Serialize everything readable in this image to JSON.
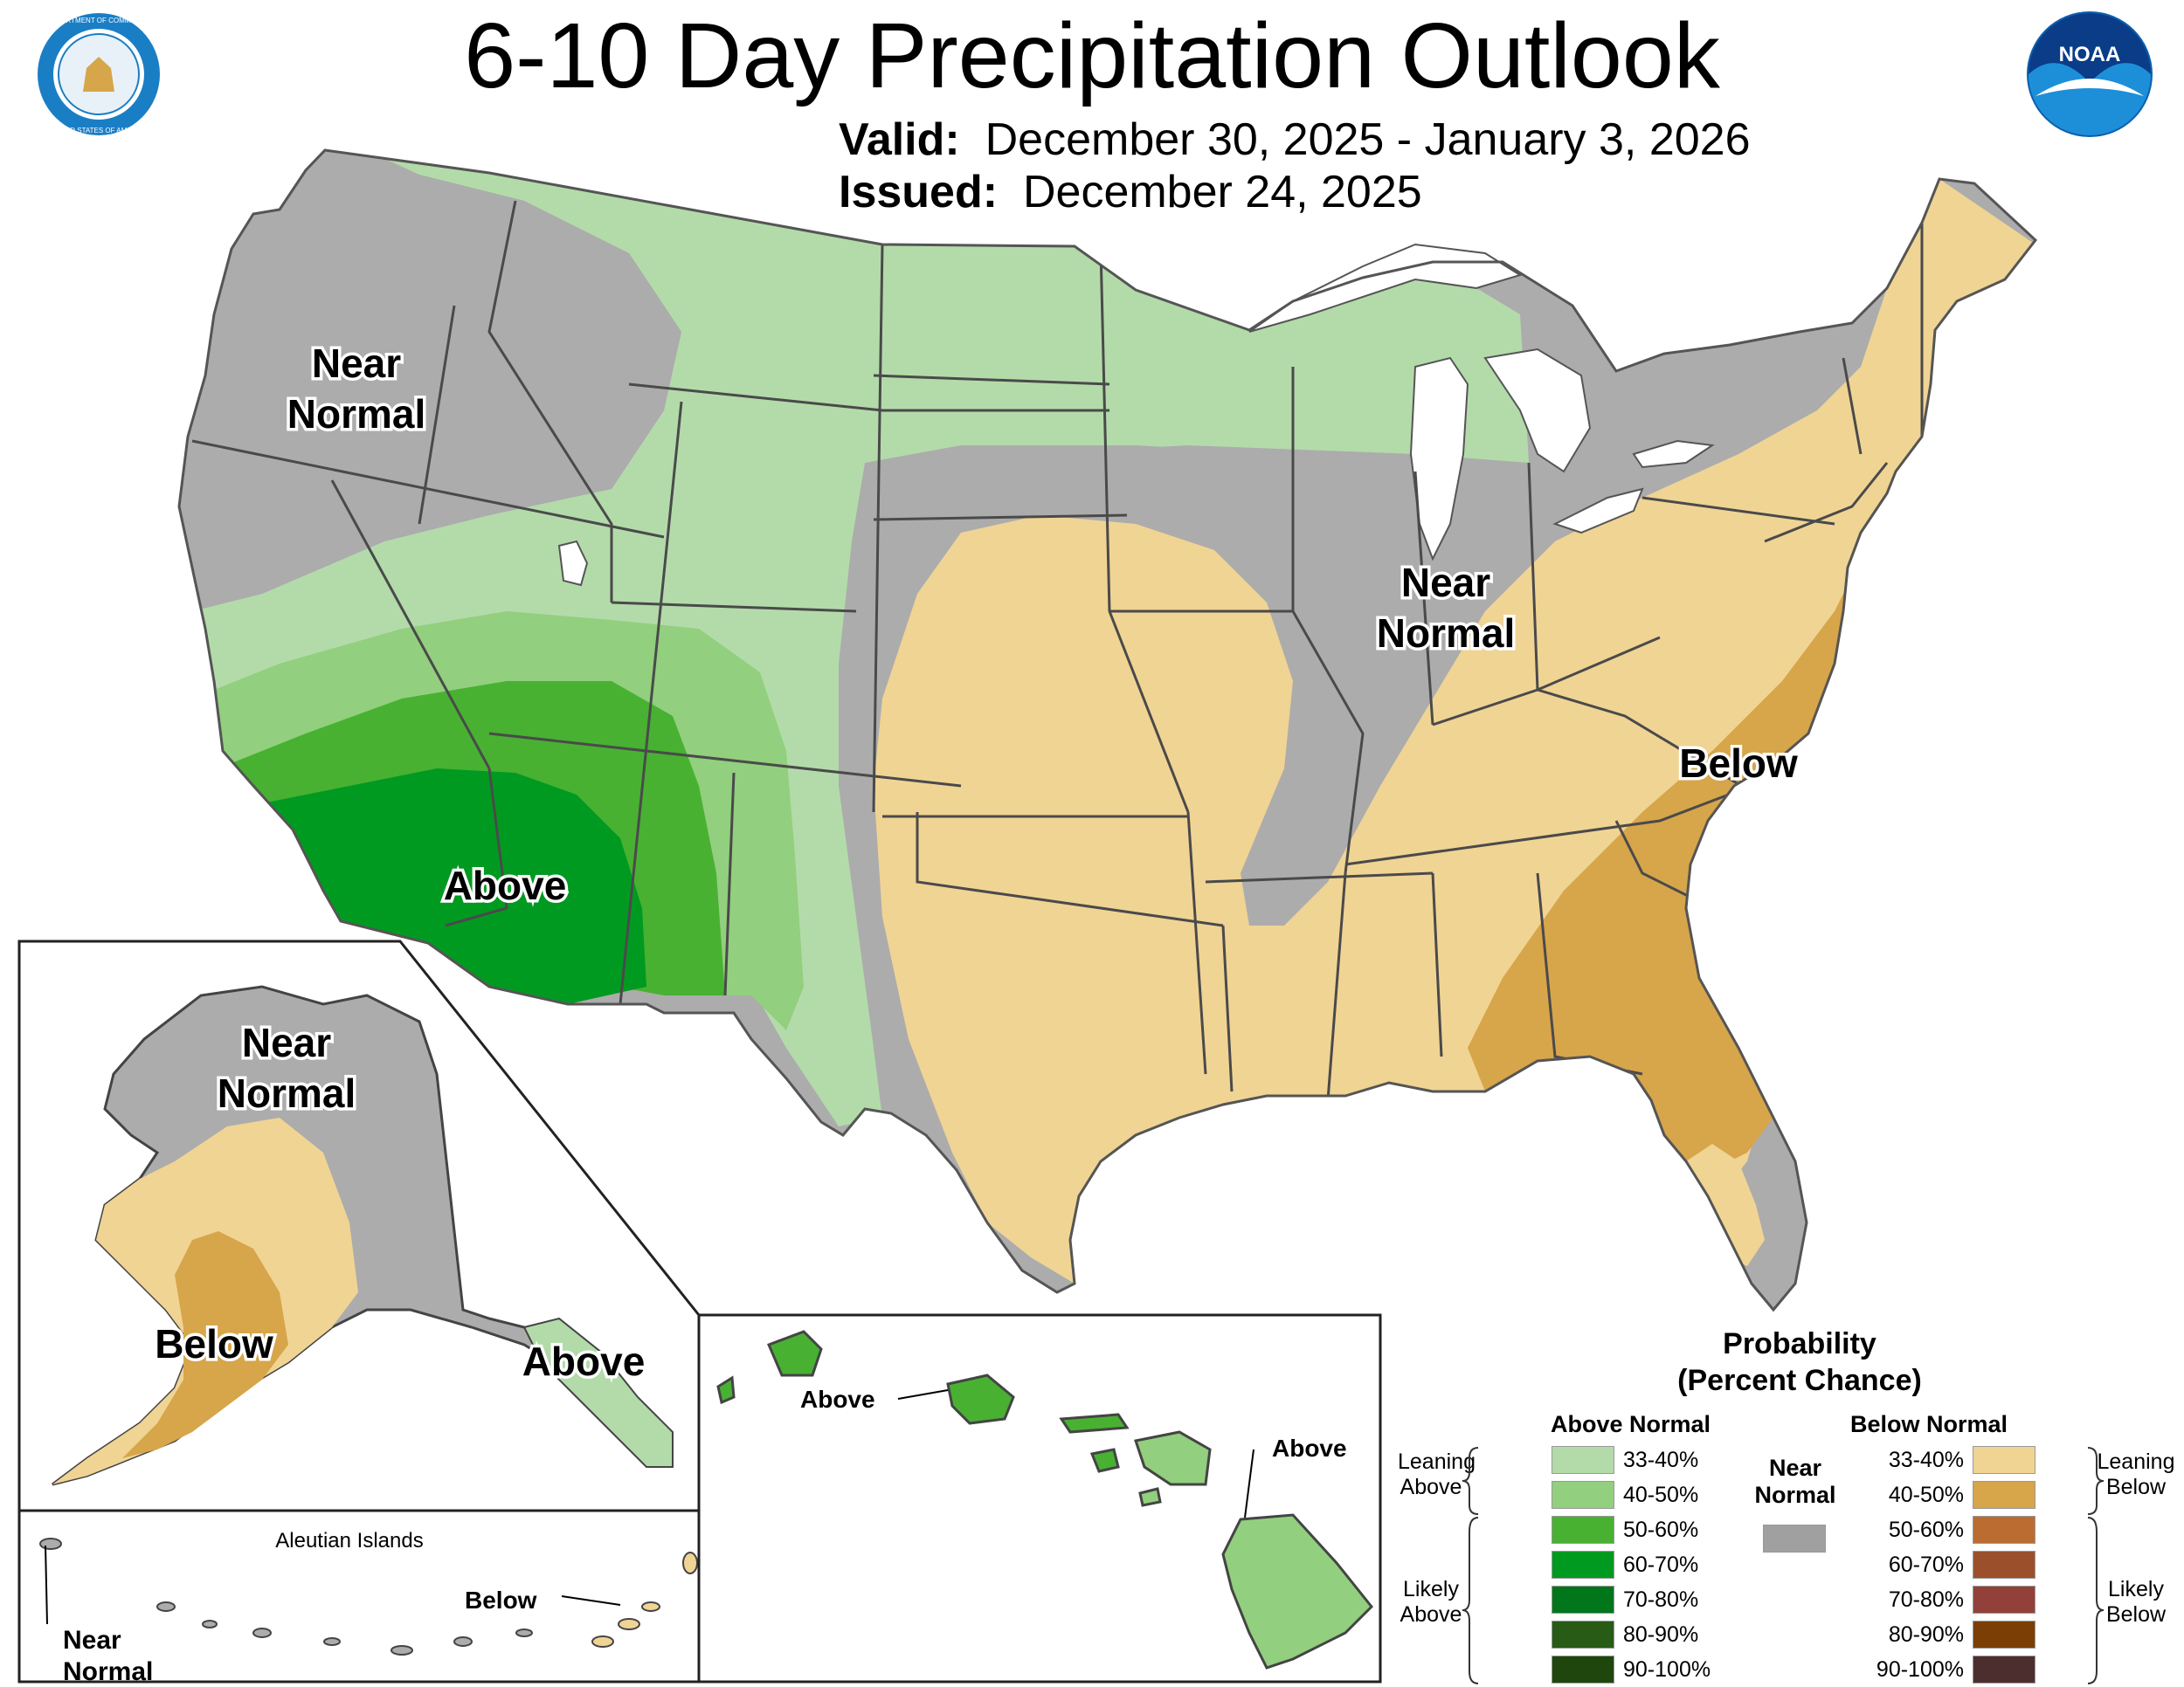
{
  "title": "6-10 Day Precipitation Outlook",
  "valid_label": "Valid:",
  "valid_dates": "December 30, 2025 - January 3, 2026",
  "issued_label": "Issued:",
  "issued_date": "December 24, 2025",
  "logos": {
    "left": "Department of Commerce seal",
    "left_ring_top": "DEPARTMENT OF COMMERCE",
    "left_ring_bottom": "UNITED STATES OF AMERICA",
    "right": "NOAA",
    "right_text": "NOAA"
  },
  "conus_labels": {
    "nw": [
      "Near",
      "Normal"
    ],
    "midwest": [
      "Near",
      "Normal"
    ],
    "southwest": "Above",
    "southeast": "Below"
  },
  "alaska_labels": {
    "north": [
      "Near",
      "Normal"
    ],
    "sw": "Below",
    "se": "Above"
  },
  "aleutian": {
    "title": "Aleutian Islands",
    "below": "Below",
    "near": [
      "Near",
      "Normal"
    ]
  },
  "hawaii_labels": {
    "left": "Above",
    "right": "Above"
  },
  "legend": {
    "title_line1": "Probability",
    "title_line2": "(Percent Chance)",
    "above_header": "Above Normal",
    "below_header": "Below Normal",
    "near_label": [
      "Near",
      "Normal"
    ],
    "near_color": "#a0a0a0",
    "leaning_above": [
      "Leaning",
      "Above"
    ],
    "likely_above": [
      "Likely",
      "Above"
    ],
    "leaning_below": [
      "Leaning",
      "Below"
    ],
    "likely_below": [
      "Likely",
      "Below"
    ],
    "above": [
      {
        "range": "33-40%",
        "color": "#b3dbaa"
      },
      {
        "range": "40-50%",
        "color": "#92cf7e"
      },
      {
        "range": "50-60%",
        "color": "#48b132"
      },
      {
        "range": "60-70%",
        "color": "#019a21"
      },
      {
        "range": "70-80%",
        "color": "#01761b"
      },
      {
        "range": "80-90%",
        "color": "#275b16"
      },
      {
        "range": "90-100%",
        "color": "#1e460d"
      }
    ],
    "below": [
      {
        "range": "33-40%",
        "color": "#f0d494"
      },
      {
        "range": "40-50%",
        "color": "#d7a54a"
      },
      {
        "range": "50-60%",
        "color": "#bb6c31"
      },
      {
        "range": "60-70%",
        "color": "#9b502b"
      },
      {
        "range": "70-80%",
        "color": "#93403a"
      },
      {
        "range": "80-90%",
        "color": "#7b3f05"
      },
      {
        "range": "90-100%",
        "color": "#4d2e2e"
      }
    ]
  }
}
